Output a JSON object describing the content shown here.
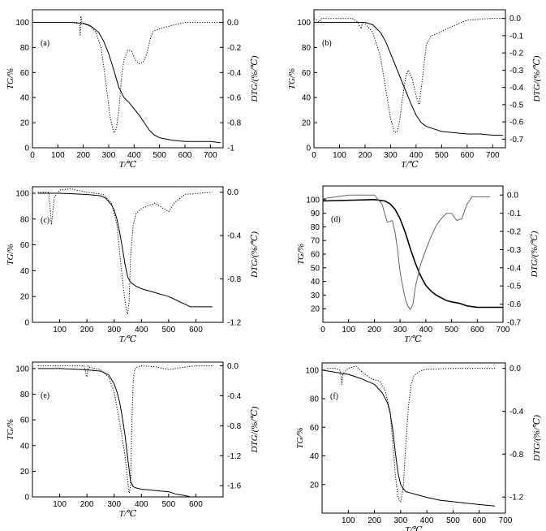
{
  "figure": {
    "xlabel": "T/℃",
    "ylabel_left": "TG/%",
    "ylabel_right": "DTG/(%/℃)"
  },
  "chart_data": [
    {
      "type": "line",
      "panel_label": "(a)",
      "xlim": [
        0,
        750
      ],
      "ylim_left": [
        0,
        110
      ],
      "ylim_right": [
        -1.0,
        0.1
      ],
      "xticks": [
        0,
        100,
        200,
        300,
        400,
        500,
        600,
        700
      ],
      "yticks_left": [
        0,
        20,
        40,
        60,
        80,
        100
      ],
      "yticks_right": [
        0.0,
        -0.2,
        -0.4,
        -0.6,
        -0.8,
        -1.0
      ],
      "xlabel": "T/℃",
      "ylabel_left": "TG/%",
      "ylabel_right": "DTG/(%/℃)",
      "series": [
        {
          "axis": "left",
          "style": "solid",
          "x": [
            0,
            150,
            200,
            230,
            260,
            280,
            300,
            320,
            340,
            360,
            380,
            400,
            420,
            440,
            460,
            480,
            500,
            550,
            600,
            650,
            700,
            740
          ],
          "y": [
            100,
            100,
            99,
            97,
            92,
            85,
            75,
            62,
            48,
            40,
            36,
            31,
            26,
            20,
            14,
            10,
            8,
            6,
            5,
            5,
            5,
            4
          ]
        },
        {
          "axis": "right",
          "style": "dotted",
          "x": [
            0,
            180,
            185,
            188,
            191,
            195,
            220,
            250,
            270,
            290,
            305,
            320,
            330,
            340,
            350,
            360,
            375,
            390,
            405,
            420,
            435,
            450,
            465,
            475,
            490,
            520,
            600,
            700,
            740
          ],
          "y": [
            0,
            0,
            -0.02,
            -0.1,
            0.05,
            0,
            -0.02,
            -0.08,
            -0.2,
            -0.5,
            -0.75,
            -0.88,
            -0.85,
            -0.7,
            -0.45,
            -0.3,
            -0.22,
            -0.23,
            -0.3,
            -0.33,
            -0.32,
            -0.25,
            -0.12,
            -0.07,
            -0.06,
            -0.04,
            0,
            0,
            0
          ]
        }
      ]
    },
    {
      "type": "line",
      "panel_label": "(b)",
      "xlim": [
        0,
        750
      ],
      "ylim_left": [
        0,
        110
      ],
      "ylim_right": [
        -0.75,
        0.05
      ],
      "xticks": [
        0,
        100,
        200,
        300,
        400,
        500,
        600,
        700
      ],
      "yticks_left": [
        0,
        20,
        40,
        60,
        80,
        100
      ],
      "yticks_right": [
        0.0,
        -0.1,
        -0.2,
        -0.3,
        -0.4,
        -0.5,
        -0.6,
        -0.7
      ],
      "xlabel": "T/℃",
      "ylabel_left": "TG/%",
      "ylabel_right": "DTG/(%/℃)",
      "series": [
        {
          "axis": "left",
          "style": "solid",
          "x": [
            0,
            200,
            230,
            260,
            280,
            300,
            320,
            340,
            360,
            380,
            400,
            420,
            440,
            470,
            500,
            550,
            600,
            650,
            700,
            740
          ],
          "y": [
            100,
            100,
            98,
            92,
            85,
            75,
            65,
            55,
            45,
            35,
            26,
            20,
            17,
            15,
            13,
            12,
            11,
            11,
            10,
            10
          ]
        },
        {
          "axis": "right",
          "style": "dotted",
          "x": [
            0,
            20,
            30,
            150,
            170,
            185,
            190,
            200,
            230,
            260,
            280,
            300,
            315,
            325,
            335,
            345,
            360,
            370,
            385,
            400,
            412,
            425,
            440,
            460,
            480,
            520,
            600,
            700,
            740
          ],
          "y": [
            0,
            -0.02,
            0,
            0,
            -0.02,
            -0.06,
            -0.02,
            -0.03,
            -0.08,
            -0.22,
            -0.4,
            -0.58,
            -0.66,
            -0.66,
            -0.6,
            -0.48,
            -0.33,
            -0.3,
            -0.35,
            -0.45,
            -0.5,
            -0.35,
            -0.15,
            -0.1,
            -0.09,
            -0.06,
            -0.01,
            0,
            0
          ]
        }
      ]
    },
    {
      "type": "line",
      "panel_label": "(c)",
      "xlim": [
        0,
        700
      ],
      "ylim_left": [
        0,
        105
      ],
      "ylim_right": [
        -1.2,
        0.05
      ],
      "xticks": [
        100,
        200,
        300,
        400,
        500,
        600
      ],
      "yticks_left": [
        0,
        20,
        40,
        60,
        80,
        100
      ],
      "yticks_right": [
        0.0,
        -0.4,
        -0.8,
        -1.2
      ],
      "xlabel": "T/℃",
      "ylabel_left": "TG/%",
      "ylabel_right": "DTG/(%/℃)",
      "series": [
        {
          "axis": "left",
          "style": "solid",
          "x": [
            20,
            100,
            200,
            250,
            270,
            290,
            300,
            310,
            320,
            330,
            340,
            350,
            360,
            380,
            400,
            450,
            500,
            530,
            560,
            580,
            600,
            660
          ],
          "y": [
            100,
            100,
            99,
            98,
            96,
            91,
            87,
            80,
            70,
            58,
            45,
            35,
            31,
            28,
            26,
            23,
            20,
            17,
            14,
            12,
            12,
            12
          ]
        },
        {
          "axis": "right",
          "style": "dotted",
          "x": [
            20,
            60,
            70,
            80,
            100,
            140,
            200,
            260,
            290,
            310,
            320,
            330,
            340,
            345,
            350,
            355,
            360,
            370,
            380,
            400,
            450,
            480,
            500,
            520,
            560,
            660
          ],
          "y": [
            0,
            0,
            -0.3,
            -0.05,
            0.02,
            0.03,
            0,
            -0.02,
            -0.1,
            -0.3,
            -0.55,
            -0.8,
            -1.0,
            -1.1,
            -1.12,
            -1.0,
            -0.6,
            -0.3,
            -0.2,
            -0.15,
            -0.1,
            -0.15,
            -0.18,
            -0.1,
            -0.02,
            0
          ]
        }
      ]
    },
    {
      "type": "line",
      "panel_label": "(d)",
      "xlim": [
        0,
        700
      ],
      "ylim_left": [
        10,
        110
      ],
      "ylim_right": [
        -0.7,
        0.05
      ],
      "xticks": [
        0,
        100,
        200,
        300,
        400,
        500,
        600,
        700
      ],
      "yticks_left": [
        20,
        30,
        40,
        50,
        60,
        70,
        80,
        90,
        100
      ],
      "yticks_right": [
        0.0,
        -0.1,
        -0.2,
        -0.3,
        -0.4,
        -0.5,
        -0.6,
        -0.7
      ],
      "xlabel": "T/℃",
      "ylabel_left": "TG/%",
      "ylabel_right": "DTG/(%/℃)",
      "series": [
        {
          "axis": "left",
          "style": "solid",
          "x": [
            0,
            200,
            240,
            260,
            280,
            300,
            320,
            340,
            360,
            380,
            400,
            420,
            440,
            460,
            480,
            500,
            530,
            560,
            600,
            650,
            700
          ],
          "y": [
            99,
            100,
            99,
            97,
            93,
            86,
            76,
            64,
            53,
            44,
            37,
            33,
            30,
            28,
            26,
            25,
            24,
            22,
            21,
            21,
            21
          ]
        },
        {
          "axis": "right",
          "style": "gray",
          "x": [
            0,
            100,
            200,
            230,
            250,
            270,
            280,
            290,
            300,
            310,
            320,
            330,
            340,
            350,
            360,
            380,
            400,
            420,
            440,
            460,
            480,
            500,
            520,
            540,
            560,
            580,
            600,
            650
          ],
          "y": [
            -0.02,
            0,
            0,
            -0.05,
            -0.15,
            -0.14,
            -0.2,
            -0.3,
            -0.42,
            -0.5,
            -0.57,
            -0.61,
            -0.63,
            -0.6,
            -0.5,
            -0.38,
            -0.3,
            -0.23,
            -0.17,
            -0.13,
            -0.1,
            -0.1,
            -0.14,
            -0.13,
            -0.05,
            -0.01,
            -0.01,
            -0.01
          ]
        }
      ]
    },
    {
      "type": "line",
      "panel_label": "(e)",
      "xlim": [
        0,
        700
      ],
      "ylim_left": [
        0,
        105
      ],
      "ylim_right": [
        -1.75,
        0.05
      ],
      "xticks": [
        100,
        200,
        300,
        400,
        500,
        600
      ],
      "yticks_left": [
        0,
        20,
        40,
        60,
        80,
        100
      ],
      "yticks_right": [
        0.0,
        -0.4,
        -0.8,
        -1.2,
        -1.6
      ],
      "xlabel": "T/℃",
      "ylabel_left": "TG/%",
      "ylabel_right": "DTG/(%/℃)",
      "series": [
        {
          "axis": "left",
          "style": "solid",
          "x": [
            20,
            100,
            200,
            250,
            280,
            300,
            310,
            320,
            330,
            340,
            350,
            360,
            370,
            380,
            400,
            450,
            500,
            530,
            560,
            580,
            600,
            660
          ],
          "y": [
            100,
            100,
            99,
            98,
            95,
            88,
            82,
            74,
            62,
            48,
            30,
            12,
            8,
            7,
            6,
            5,
            4,
            2,
            1,
            0,
            0,
            0
          ]
        },
        {
          "axis": "right",
          "style": "dotted",
          "x": [
            20,
            190,
            200,
            205,
            210,
            250,
            280,
            300,
            320,
            340,
            350,
            355,
            360,
            365,
            370,
            375,
            380,
            400,
            450,
            500,
            550,
            600,
            660
          ],
          "y": [
            0,
            0,
            -0.15,
            0,
            -0.02,
            -0.05,
            -0.15,
            -0.35,
            -0.75,
            -1.2,
            -1.55,
            -1.7,
            -1.6,
            -0.8,
            -0.2,
            -0.05,
            -0.02,
            0,
            -0.01,
            -0.05,
            -0.02,
            0,
            0
          ]
        }
      ]
    },
    {
      "type": "line",
      "panel_label": "(f)",
      "xlim": [
        0,
        700
      ],
      "ylim_left": [
        0,
        105
      ],
      "ylim_right": [
        -1.35,
        0.05
      ],
      "xticks": [
        100,
        200,
        300,
        400,
        500,
        600,
        700
      ],
      "yticks_left": [
        20,
        40,
        60,
        80,
        100
      ],
      "yticks_right": [
        0.0,
        -0.4,
        -0.8,
        -1.2
      ],
      "xlabel": "T/℃",
      "ylabel_left": "TG/%",
      "ylabel_right": "DTG/(%/℃)",
      "series": [
        {
          "axis": "left",
          "style": "solid",
          "x": [
            0,
            100,
            150,
            200,
            230,
            250,
            260,
            270,
            280,
            290,
            300,
            310,
            320,
            340,
            360,
            400,
            450,
            500,
            550,
            600,
            660
          ],
          "y": [
            100,
            97,
            94,
            90,
            84,
            77,
            70,
            58,
            42,
            28,
            20,
            17,
            15,
            14,
            13,
            11,
            9,
            8,
            7,
            6,
            5
          ]
        },
        {
          "axis": "right",
          "style": "dotted",
          "x": [
            20,
            50,
            70,
            75,
            80,
            100,
            130,
            160,
            190,
            220,
            240,
            260,
            270,
            280,
            290,
            300,
            310,
            320,
            330,
            340,
            350,
            360,
            380,
            400,
            500,
            600,
            660
          ],
          "y": [
            0,
            0,
            -0.02,
            -0.15,
            -0.05,
            0,
            0.02,
            -0.05,
            -0.1,
            -0.12,
            -0.2,
            -0.4,
            -0.7,
            -1.0,
            -1.2,
            -1.25,
            -1.1,
            -0.7,
            -0.35,
            -0.15,
            -0.07,
            -0.05,
            -0.02,
            -0.01,
            0,
            0,
            0
          ]
        }
      ]
    }
  ]
}
